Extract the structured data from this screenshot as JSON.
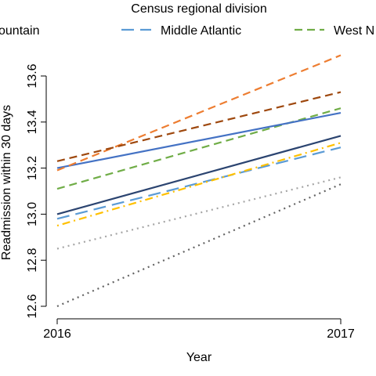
{
  "chart_data": {
    "type": "line",
    "title": "",
    "xlabel": "Year",
    "ylabel": "Readmission within 30 days",
    "xlim": [
      2016,
      2017
    ],
    "ylim": [
      12.6,
      13.6
    ],
    "x_ticks": [
      "2016",
      "2017"
    ],
    "y_ticks": [
      12.6,
      12.8,
      13.0,
      13.2,
      13.4,
      13.6
    ],
    "y_tick_labels": [
      "12.6",
      "12.8",
      "13.0",
      "13.2",
      "13.4",
      "13.6"
    ],
    "legend": {
      "title": "Census regional division",
      "placement": "top",
      "visible_entries": [
        {
          "label": "ountain",
          "series_index": 0
        },
        {
          "label": "Middle Atlantic",
          "series_index": 1
        },
        {
          "label": "West N",
          "series_index": 2
        }
      ]
    },
    "series": [
      {
        "name": "Mountain",
        "color": "#2b4470",
        "dash": "solid",
        "x": [
          2016,
          2017
        ],
        "y": [
          13.0,
          13.34
        ]
      },
      {
        "name": "Middle Atlantic",
        "color": "#5b9bd5",
        "dash": "longdash",
        "x": [
          2016,
          2017
        ],
        "y": [
          12.98,
          13.29
        ]
      },
      {
        "name": "West N",
        "color": "#70ad47",
        "dash": "dashed",
        "x": [
          2016,
          2017
        ],
        "y": [
          13.11,
          13.46
        ]
      },
      {
        "color": "#4472c4",
        "dash": "solid",
        "x": [
          2016,
          2017
        ],
        "y": [
          13.2,
          13.44
        ]
      },
      {
        "color": "#ed7d31",
        "dash": "dashed",
        "x": [
          2016,
          2017
        ],
        "y": [
          13.19,
          13.69
        ]
      },
      {
        "color": "#9e480e",
        "dash": "dashed",
        "x": [
          2016,
          2017
        ],
        "y": [
          13.23,
          13.53
        ]
      },
      {
        "color": "#ffc000",
        "dash": "dotdash",
        "x": [
          2016,
          2017
        ],
        "y": [
          12.95,
          13.31
        ]
      },
      {
        "color": "#a5a5a5",
        "dash": "dotted",
        "x": [
          2016,
          2017
        ],
        "y": [
          12.85,
          13.16
        ]
      },
      {
        "color": "#636363",
        "dash": "dotted",
        "x": [
          2016,
          2017
        ],
        "y": [
          12.6,
          13.13
        ]
      }
    ]
  }
}
